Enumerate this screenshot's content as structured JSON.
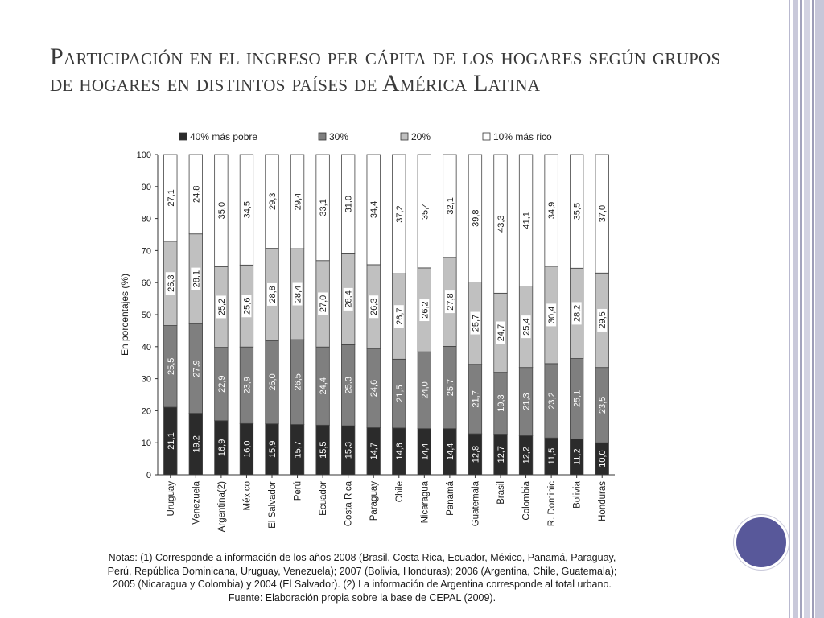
{
  "slide": {
    "title": "Participación en el ingreso per cápita de los hogares según grupos de hogares en distintos países de América Latina"
  },
  "notes": {
    "line1": "Notas: (1) Corresponde a información de los años 2008 (Brasil, Costa Rica, Ecuador, México, Panamá, Paraguay,",
    "line2": "Perú, República Dominicana, Uruguay, Venezuela); 2007 (Bolivia, Honduras); 2006 (Argentina, Chile, Guatemala);",
    "line3": "2005 (Nicaragua y Colombia) y 2004 (El Salvador). (2) La información de Argentina corresponde al total urbano.",
    "line4": "Fuente: Elaboración propia sobre la base de CEPAL (2009)."
  },
  "colors": {
    "accent": "#58589a",
    "series": [
      "#2b2b2b",
      "#7f7f7f",
      "#c0c0c0",
      "#ffffff"
    ]
  },
  "chart_data": {
    "type": "bar",
    "stacked": true,
    "title": "",
    "xlabel": "",
    "ylabel": "En porcentajes (%)",
    "ylim": [
      0,
      100
    ],
    "yticks": [
      0,
      10,
      20,
      30,
      40,
      50,
      60,
      70,
      80,
      90,
      100
    ],
    "legend_position": "top",
    "grid": false,
    "categories": [
      "Uruguay",
      "Venezuela",
      "Argentina(2)",
      "México",
      "El Salvador",
      "Perú",
      "Ecuador",
      "Costa Rica",
      "Paraguay",
      "Chile",
      "Nicaragua",
      "Panamá",
      "Guatemala",
      "Brasil",
      "Colombia",
      "R. Dominic",
      "Bolivia",
      "Honduras"
    ],
    "series": [
      {
        "name": "40% más pobre",
        "color": "#2b2b2b",
        "labels": [
          "21,1",
          "19,2",
          "16,9",
          "16,0",
          "15,9",
          "15,7",
          "15,5",
          "15,3",
          "14,7",
          "14,6",
          "14,4",
          "14,4",
          "12,8",
          "12,7",
          "12,2",
          "11,5",
          "11,2",
          "10,0"
        ],
        "values": [
          21.1,
          19.2,
          16.9,
          16.0,
          15.9,
          15.7,
          15.5,
          15.3,
          14.7,
          14.6,
          14.4,
          14.4,
          12.8,
          12.7,
          12.2,
          11.5,
          11.2,
          10.0
        ]
      },
      {
        "name": "30%",
        "color": "#7f7f7f",
        "labels": [
          "25,5",
          "27,9",
          "22,9",
          "23,9",
          "26,0",
          "26,5",
          "24,4",
          "25,3",
          "24,6",
          "21,5",
          "24,0",
          "25,7",
          "21,7",
          "19,3",
          "21,3",
          "23,2",
          "25,1",
          "23,5"
        ],
        "values": [
          25.5,
          27.9,
          22.9,
          23.9,
          26.0,
          26.5,
          24.4,
          25.3,
          24.6,
          21.5,
          24.0,
          25.7,
          21.7,
          19.3,
          21.3,
          23.2,
          25.1,
          23.5
        ]
      },
      {
        "name": "20%",
        "color": "#c0c0c0",
        "labels": [
          "26,3",
          "28,1",
          "25,2",
          "25,6",
          "28,8",
          "28,4",
          "27,0",
          "28,4",
          "26,3",
          "26,7",
          "26,2",
          "27,8",
          "25,7",
          "24,7",
          "25,4",
          "30,4",
          "28,2",
          "29,5"
        ],
        "values": [
          26.3,
          28.1,
          25.2,
          25.6,
          28.8,
          28.4,
          27.0,
          28.4,
          26.3,
          26.7,
          26.2,
          27.8,
          25.7,
          24.7,
          25.4,
          30.4,
          28.2,
          29.5
        ]
      },
      {
        "name": "10% más rico",
        "color": "#ffffff",
        "labels": [
          "27,1",
          "24,8",
          "35,0",
          "34,5",
          "29,3",
          "29,4",
          "33,1",
          "31,0",
          "34,4",
          "37,2",
          "35,4",
          "32,1",
          "39,8",
          "43,3",
          "41,1",
          "34,9",
          "35,5",
          "37,0"
        ],
        "values": [
          27.1,
          24.8,
          35.0,
          34.5,
          29.3,
          29.4,
          33.1,
          31.0,
          34.4,
          37.2,
          35.4,
          32.1,
          39.8,
          43.3,
          41.1,
          34.9,
          35.5,
          37.0
        ]
      }
    ]
  }
}
